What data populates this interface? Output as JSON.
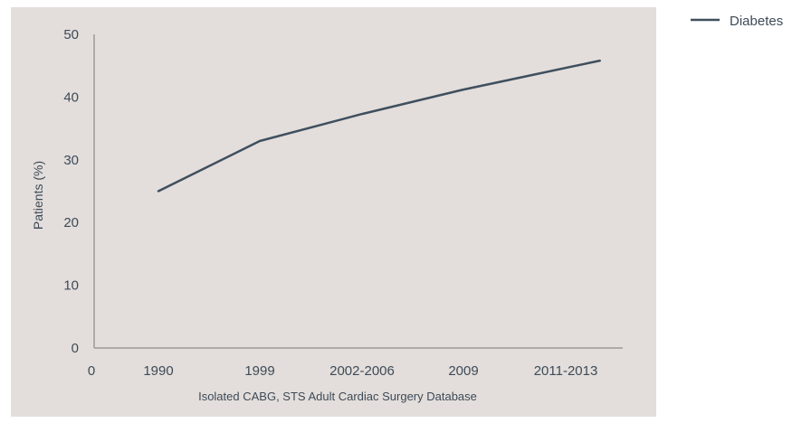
{
  "chart_data": {
    "type": "line",
    "title": "",
    "xlabel": "Isolated CABG, STS Adult Cardiac Surgery Database",
    "ylabel": "Patients (%)",
    "x_origin_label": "0",
    "categories": [
      "1990",
      "1999",
      "2002-2006",
      "2009",
      "2011-2013"
    ],
    "y_ticks": [
      0,
      10,
      20,
      30,
      40,
      50
    ],
    "ylim": [
      0,
      50
    ],
    "grid": false,
    "legend_position": "top-right",
    "series": [
      {
        "name": "Diabetes",
        "color": "#3f4f5e",
        "points": [
          {
            "x": 1990,
            "y": 25
          },
          {
            "x": 1999,
            "y": 33
          },
          {
            "x": 2004,
            "y": 37.3
          },
          {
            "x": 2009,
            "y": 41.2
          },
          {
            "x": 2011,
            "y": 43.5
          },
          {
            "x": 2013,
            "y": 45.8
          }
        ]
      }
    ],
    "colors": {
      "plot_background": "#e3dedb",
      "axis": "#9e9893",
      "text": "#3d4a57"
    }
  }
}
